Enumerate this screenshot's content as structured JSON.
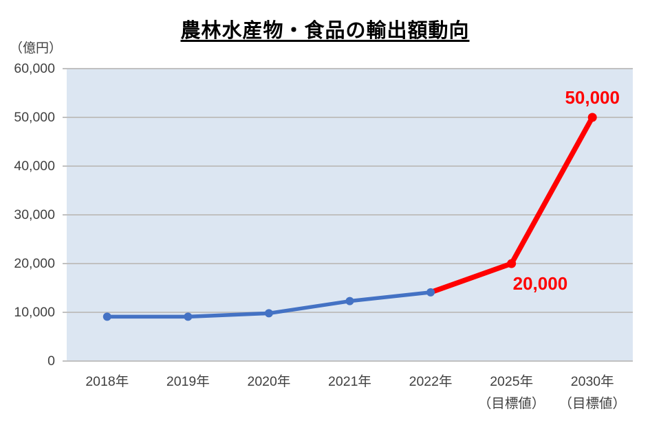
{
  "header": {
    "title": "農林水産物・食品の輸出額動向",
    "y_axis_unit_label": "（億円）"
  },
  "chart_data": {
    "type": "line",
    "title": "農林水産物・食品の輸出額動向",
    "ylabel": "（億円）",
    "ylim": [
      0,
      60000
    ],
    "ytick_interval": 10000,
    "grid": true,
    "legend_position": "none",
    "plot_background": "#dce6f2",
    "gridline_color": "#c0c0c0",
    "axis_label_color": "#404040",
    "y_ticks": [
      {
        "value": 0,
        "label": "0"
      },
      {
        "value": 10000,
        "label": "10,000"
      },
      {
        "value": 20000,
        "label": "20,000"
      },
      {
        "value": 30000,
        "label": "30,000"
      },
      {
        "value": 40000,
        "label": "40,000"
      },
      {
        "value": 50000,
        "label": "50,000"
      },
      {
        "value": 60000,
        "label": "60,000"
      }
    ],
    "categories": [
      {
        "label": "2018年",
        "sublabel": ""
      },
      {
        "label": "2019年",
        "sublabel": ""
      },
      {
        "label": "2020年",
        "sublabel": ""
      },
      {
        "label": "2021年",
        "sublabel": ""
      },
      {
        "label": "2022年",
        "sublabel": ""
      },
      {
        "label": "2025年",
        "sublabel": "（目標値）"
      },
      {
        "label": "2030年",
        "sublabel": "（目標値）"
      }
    ],
    "series": [
      {
        "name": "target-projection",
        "color": "#ff0000",
        "points": [
          {
            "category_index": 4,
            "value": 14100,
            "marker": false
          },
          {
            "category_index": 5,
            "value": 20000,
            "marker": true
          },
          {
            "category_index": 6,
            "value": 50000,
            "marker": true
          }
        ]
      },
      {
        "name": "actual-exports",
        "color": "#4472c4",
        "points": [
          {
            "category_index": 0,
            "value": 9100,
            "marker": true
          },
          {
            "category_index": 1,
            "value": 9100,
            "marker": true
          },
          {
            "category_index": 2,
            "value": 9800,
            "marker": true
          },
          {
            "category_index": 3,
            "value": 12300,
            "marker": true
          },
          {
            "category_index": 4,
            "value": 14100,
            "marker": true
          }
        ]
      }
    ],
    "annotations": [
      {
        "text": "20,000",
        "category_index": 5,
        "value": 20000,
        "color": "#ff0000",
        "placement": "below-right"
      },
      {
        "text": "50,000",
        "category_index": 6,
        "value": 50000,
        "color": "#ff0000",
        "placement": "above"
      }
    ]
  }
}
